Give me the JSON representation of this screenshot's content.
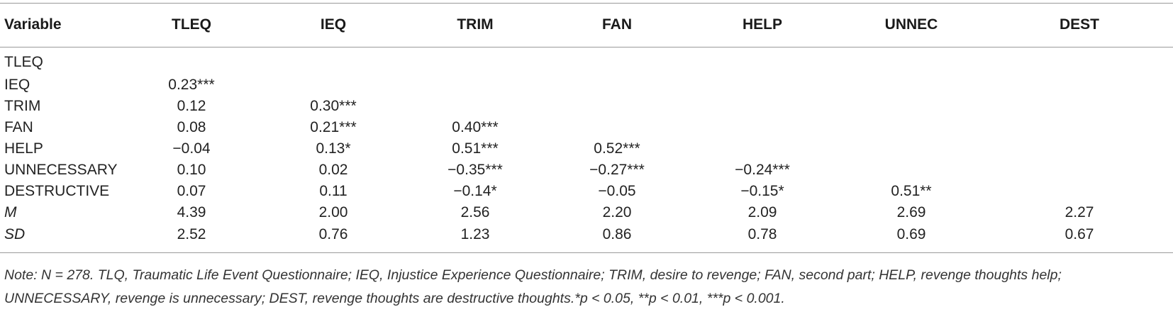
{
  "columns": [
    "Variable",
    "TLEQ",
    "IEQ",
    "TRIM",
    "FAN",
    "HELP",
    "UNNEC",
    "DEST"
  ],
  "rows": [
    {
      "label": "TLEQ",
      "cells": [
        "",
        "",
        "",
        "",
        "",
        "",
        ""
      ]
    },
    {
      "label": "IEQ",
      "cells": [
        "0.23***",
        "",
        "",
        "",
        "",
        "",
        ""
      ]
    },
    {
      "label": "TRIM",
      "cells": [
        "0.12",
        "0.30***",
        "",
        "",
        "",
        "",
        ""
      ]
    },
    {
      "label": "FAN",
      "cells": [
        "0.08",
        "0.21***",
        "0.40***",
        "",
        "",
        "",
        ""
      ]
    },
    {
      "label": "HELP",
      "cells": [
        "−0.04",
        "0.13*",
        "0.51***",
        "0.52***",
        "",
        "",
        ""
      ]
    },
    {
      "label": "UNNECESSARY",
      "cells": [
        "0.10",
        "0.02",
        "−0.35***",
        "−0.27***",
        "−0.24***",
        "",
        ""
      ]
    },
    {
      "label": "DESTRUCTIVE",
      "cells": [
        "0.07",
        "0.11",
        "−0.14*",
        "−0.05",
        "−0.15*",
        "0.51**",
        ""
      ]
    },
    {
      "label": "M",
      "cells": [
        "4.39",
        "2.00",
        "2.56",
        "2.20",
        "2.09",
        "2.69",
        "2.27"
      ]
    },
    {
      "label": "SD",
      "cells": [
        "2.52",
        "0.76",
        "1.23",
        "0.86",
        "0.78",
        "0.69",
        "0.67"
      ]
    }
  ],
  "note": {
    "line1": "Note: N = 278. TLQ, Traumatic Life Event Questionnaire; IEQ, Injustice Experience Questionnaire; TRIM, desire to revenge; FAN, second part; HELP, revenge thoughts help;",
    "line2": "UNNECESSARY, revenge is unnecessary; DEST, revenge thoughts are destructive thoughts.*p < 0.05, **p < 0.01, ***p < 0.001."
  }
}
